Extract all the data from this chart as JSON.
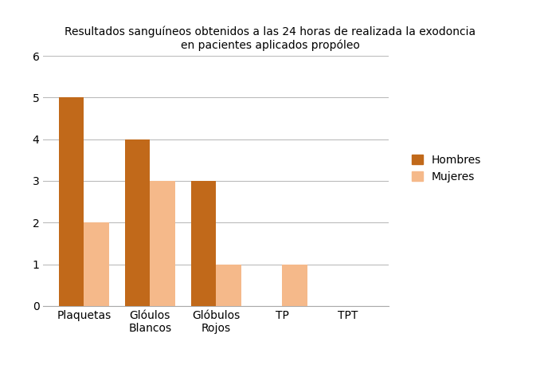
{
  "title_line1": "Resultados sanguíneos obtenidos a las 24 horas de realizada la exodoncia",
  "title_line2": "en pacientes aplicados propóleo",
  "categories": [
    "Plaquetas",
    "Glóulos\nBlancos",
    "Glóbulos\nRojos",
    "TP",
    "TPT"
  ],
  "hombres": [
    5,
    4,
    3,
    0,
    0
  ],
  "mujeres": [
    2,
    3,
    1,
    1,
    0
  ],
  "color_hombres": "#C1691A",
  "color_mujeres": "#F5B98A",
  "ylim": [
    0,
    6
  ],
  "yticks": [
    0,
    1,
    2,
    3,
    4,
    5,
    6
  ],
  "legend_hombres": "Hombres",
  "legend_mujeres": "Mujeres",
  "bar_width": 0.38,
  "background_color": "#ffffff",
  "grid_color": "#bbbbbb",
  "title_fontsize": 10,
  "tick_fontsize": 10,
  "legend_fontsize": 10
}
